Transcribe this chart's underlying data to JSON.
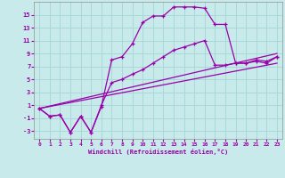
{
  "xlabel": "Windchill (Refroidissement éolien,°C)",
  "bg_color": "#c8eaea",
  "grid_color": "#a8d8d8",
  "line_color": "#9900aa",
  "xlim": [
    -0.5,
    23.5
  ],
  "ylim": [
    -4.2,
    17
  ],
  "xticks": [
    0,
    1,
    2,
    3,
    4,
    5,
    6,
    7,
    8,
    9,
    10,
    11,
    12,
    13,
    14,
    15,
    16,
    17,
    18,
    19,
    20,
    21,
    22,
    23
  ],
  "yticks": [
    -3,
    -1,
    1,
    3,
    5,
    7,
    9,
    11,
    13,
    15
  ],
  "line1_x": [
    0,
    1,
    2,
    3,
    4,
    5,
    6,
    7,
    8,
    9,
    10,
    11,
    12,
    13,
    14,
    15,
    16,
    17,
    18,
    19,
    20,
    21,
    22,
    23
  ],
  "line1_y": [
    0.5,
    -0.7,
    -0.5,
    -3.2,
    -0.7,
    -3.2,
    0.8,
    8.0,
    8.5,
    10.5,
    13.8,
    14.8,
    14.8,
    16.2,
    16.2,
    16.2,
    16.0,
    13.5,
    13.5,
    7.5,
    7.5,
    8.0,
    7.8,
    8.5
  ],
  "line2_x": [
    0,
    1,
    2,
    3,
    4,
    5,
    6,
    7,
    8,
    9,
    10,
    11,
    12,
    13,
    14,
    15,
    16,
    17,
    18,
    19,
    20,
    21,
    22,
    23
  ],
  "line2_y": [
    0.5,
    -0.7,
    -0.5,
    -3.2,
    -0.7,
    -3.2,
    1.0,
    4.5,
    5.0,
    5.8,
    6.5,
    7.5,
    8.5,
    9.5,
    10.0,
    10.5,
    11.0,
    7.2,
    7.2,
    7.5,
    7.5,
    7.8,
    7.5,
    8.5
  ],
  "line3_x": [
    0,
    23
  ],
  "line3_y": [
    0.5,
    9.0
  ],
  "line4_x": [
    0,
    23
  ],
  "line4_y": [
    0.5,
    7.5
  ]
}
